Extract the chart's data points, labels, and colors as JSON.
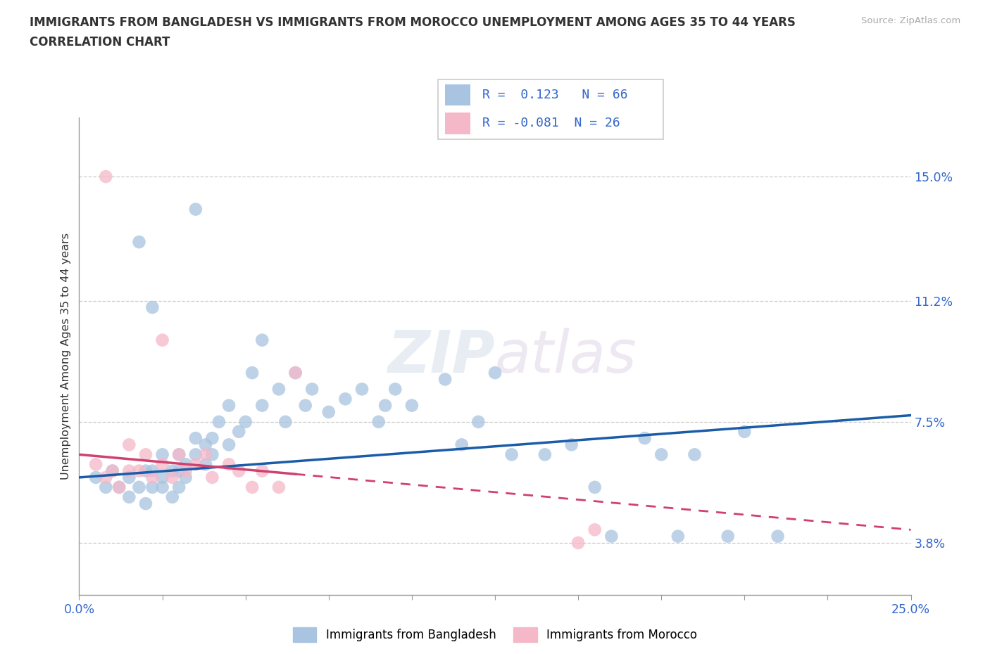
{
  "title_line1": "IMMIGRANTS FROM BANGLADESH VS IMMIGRANTS FROM MOROCCO UNEMPLOYMENT AMONG AGES 35 TO 44 YEARS",
  "title_line2": "CORRELATION CHART",
  "source_text": "Source: ZipAtlas.com",
  "ylabel": "Unemployment Among Ages 35 to 44 years",
  "legend_label1": "Immigrants from Bangladesh",
  "legend_label2": "Immigrants from Morocco",
  "r1": 0.123,
  "n1": 66,
  "r2": -0.081,
  "n2": 26,
  "xlim": [
    0.0,
    0.25
  ],
  "ylim": [
    0.022,
    0.168
  ],
  "yticks": [
    0.038,
    0.075,
    0.112,
    0.15
  ],
  "ytick_labels": [
    "3.8%",
    "7.5%",
    "11.2%",
    "15.0%"
  ],
  "xticks": [
    0.0,
    0.025,
    0.05,
    0.075,
    0.1,
    0.125,
    0.15,
    0.175,
    0.2,
    0.225,
    0.25
  ],
  "xtick_labels": [
    "0.0%",
    "",
    "",
    "",
    "",
    "",
    "",
    "",
    "",
    "",
    "25.0%"
  ],
  "color_blue": "#a8c4e0",
  "color_pink": "#f4b8c8",
  "line_blue": "#1a5ca8",
  "line_pink": "#d04070",
  "watermark_part1": "ZIP",
  "watermark_part2": "atlas",
  "bangladesh_x": [
    0.005,
    0.008,
    0.01,
    0.012,
    0.015,
    0.015,
    0.018,
    0.02,
    0.02,
    0.022,
    0.022,
    0.025,
    0.025,
    0.025,
    0.028,
    0.028,
    0.03,
    0.03,
    0.03,
    0.032,
    0.032,
    0.035,
    0.035,
    0.038,
    0.038,
    0.04,
    0.04,
    0.042,
    0.045,
    0.045,
    0.048,
    0.05,
    0.052,
    0.055,
    0.055,
    0.06,
    0.062,
    0.065,
    0.068,
    0.07,
    0.075,
    0.08,
    0.085,
    0.09,
    0.092,
    0.095,
    0.1,
    0.11,
    0.115,
    0.12,
    0.125,
    0.13,
    0.14,
    0.148,
    0.155,
    0.16,
    0.17,
    0.175,
    0.18,
    0.185,
    0.195,
    0.2,
    0.21,
    0.018,
    0.022,
    0.035
  ],
  "bangladesh_y": [
    0.058,
    0.055,
    0.06,
    0.055,
    0.052,
    0.058,
    0.055,
    0.06,
    0.05,
    0.055,
    0.06,
    0.058,
    0.065,
    0.055,
    0.052,
    0.06,
    0.055,
    0.06,
    0.065,
    0.058,
    0.062,
    0.065,
    0.07,
    0.062,
    0.068,
    0.065,
    0.07,
    0.075,
    0.068,
    0.08,
    0.072,
    0.075,
    0.09,
    0.08,
    0.1,
    0.085,
    0.075,
    0.09,
    0.08,
    0.085,
    0.078,
    0.082,
    0.085,
    0.075,
    0.08,
    0.085,
    0.08,
    0.088,
    0.068,
    0.075,
    0.09,
    0.065,
    0.065,
    0.068,
    0.055,
    0.04,
    0.07,
    0.065,
    0.04,
    0.065,
    0.04,
    0.072,
    0.04,
    0.13,
    0.11,
    0.14
  ],
  "morocco_x": [
    0.005,
    0.008,
    0.01,
    0.012,
    0.015,
    0.015,
    0.018,
    0.02,
    0.022,
    0.025,
    0.028,
    0.03,
    0.032,
    0.035,
    0.038,
    0.04,
    0.045,
    0.048,
    0.052,
    0.055,
    0.06,
    0.065,
    0.15,
    0.155,
    0.008,
    0.025
  ],
  "morocco_y": [
    0.062,
    0.058,
    0.06,
    0.055,
    0.06,
    0.068,
    0.06,
    0.065,
    0.058,
    0.062,
    0.058,
    0.065,
    0.06,
    0.062,
    0.065,
    0.058,
    0.062,
    0.06,
    0.055,
    0.06,
    0.055,
    0.09,
    0.038,
    0.042,
    0.15,
    0.1
  ],
  "trend_bd_x0": 0.0,
  "trend_bd_y0": 0.058,
  "trend_bd_x1": 0.25,
  "trend_bd_y1": 0.077,
  "trend_mo_x0": 0.0,
  "trend_mo_y0": 0.065,
  "trend_mo_x1": 0.25,
  "trend_mo_y1": 0.042,
  "trend_mo_solid_end": 0.065
}
